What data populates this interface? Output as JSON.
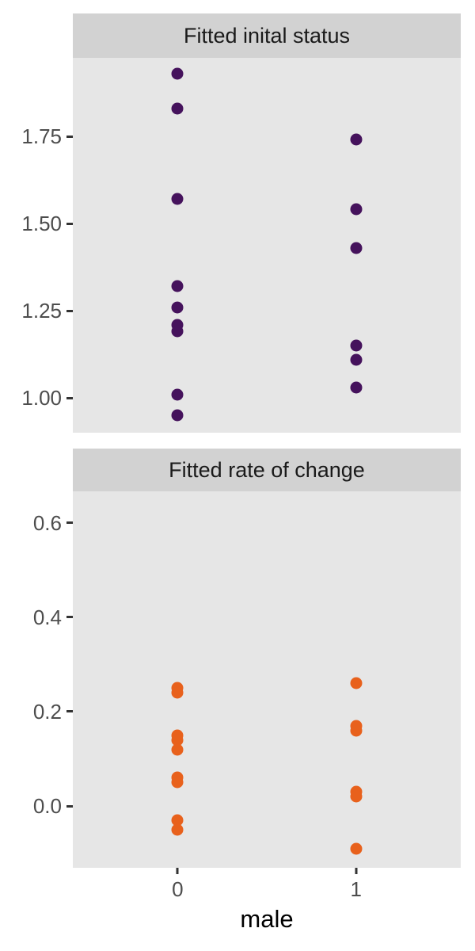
{
  "chart_data": {
    "type": "scatter",
    "subtype": "faceted-strip-dot-plot",
    "xlabel": "male",
    "categories": [
      "0",
      "1"
    ],
    "grid": "off",
    "legend": "none",
    "panel_background": "#e6e6e6",
    "strip_background": "#d2d2d2",
    "facets": [
      {
        "title": "Fitted inital status",
        "point_color": "#45125c",
        "ylim": [
          0.9,
          1.975
        ],
        "yticks": [
          {
            "value": 1.0,
            "label": "1.00"
          },
          {
            "value": 1.25,
            "label": "1.25"
          },
          {
            "value": 1.5,
            "label": "1.50"
          },
          {
            "value": 1.75,
            "label": "1.75"
          }
        ],
        "series": [
          {
            "category": "0",
            "values": [
              1.93,
              1.83,
              1.57,
              1.32,
              1.26,
              1.21,
              1.19,
              1.01,
              0.95
            ]
          },
          {
            "category": "1",
            "values": [
              1.74,
              1.54,
              1.43,
              1.15,
              1.11,
              1.03
            ]
          }
        ]
      },
      {
        "title": "Fitted rate of change",
        "point_color": "#e8611c",
        "ylim": [
          -0.131,
          0.667
        ],
        "yticks": [
          {
            "value": 0.0,
            "label": "0.0"
          },
          {
            "value": 0.2,
            "label": "0.2"
          },
          {
            "value": 0.4,
            "label": "0.4"
          },
          {
            "value": 0.6,
            "label": "0.6"
          }
        ],
        "series": [
          {
            "category": "0",
            "values": [
              0.25,
              0.24,
              0.15,
              0.14,
              0.12,
              0.06,
              0.05,
              -0.03,
              -0.05
            ]
          },
          {
            "category": "1",
            "values": [
              0.26,
              0.17,
              0.16,
              0.03,
              0.02,
              -0.09
            ]
          }
        ]
      }
    ]
  }
}
